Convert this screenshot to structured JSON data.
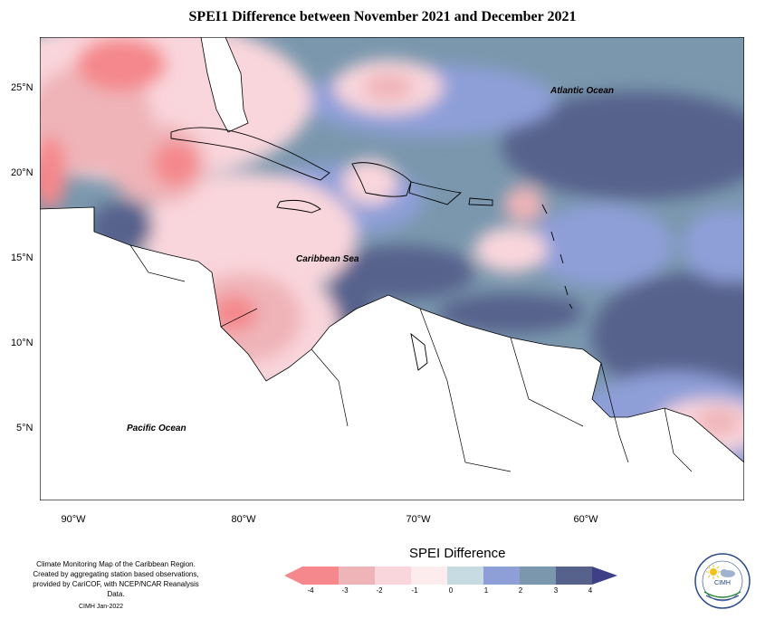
{
  "title": "SPEI1 Difference between November 2021 and December 2021",
  "lat_labels": [
    "25°N",
    "20°N",
    "15°N",
    "10°N",
    "5°N"
  ],
  "lon_labels": [
    "90°W",
    "80°W",
    "70°W",
    "60°W"
  ],
  "places": {
    "atlantic": "Atlantic Ocean",
    "caribbean": "Caribbean Sea",
    "pacific": "Pacific Ocean"
  },
  "credit": {
    "line1": "Climate Monitoring Map of the Caribbean Region.",
    "line2": "Created by aggregating station based observations,",
    "line3": "provided by CariCOF, with NCEP/NCAR Reanalysis Data.",
    "stamp": "CIMH  Jan-2022"
  },
  "legend": {
    "title": "SPEI Difference",
    "ticks": [
      "-4",
      "-3",
      "-2",
      "-1",
      "0",
      "1",
      "2",
      "3",
      "4"
    ],
    "colors": [
      "#f4888c",
      "#efb4b8",
      "#f9d6dc",
      "#fcecee",
      "#c7dbe2",
      "#8e9fd8",
      "#7a97ad",
      "#56628c"
    ]
  },
  "logo": {
    "text": "CIMH"
  }
}
